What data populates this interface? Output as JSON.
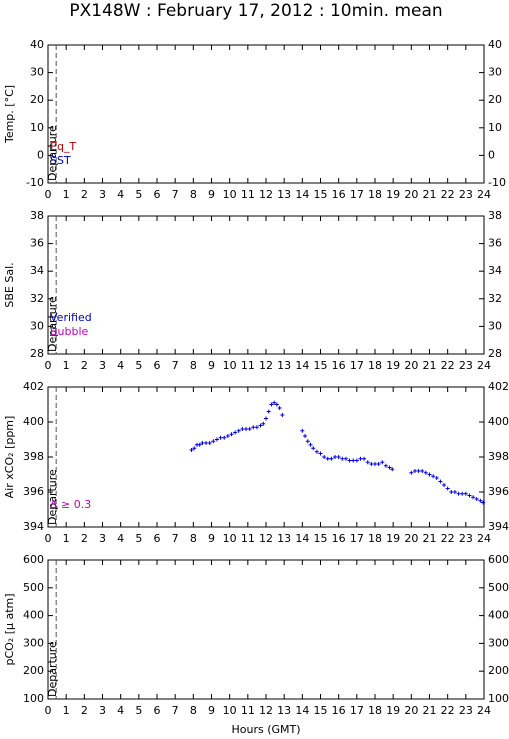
{
  "title": "PX148W : February 17, 2012 : 10min. mean",
  "xlabel": "Hours (GMT)",
  "chart_data": [
    {
      "type": "scatter",
      "ylabel": "Temp. [°C]",
      "xlim": [
        0,
        24
      ],
      "xticks": [
        0,
        1,
        2,
        3,
        4,
        5,
        6,
        7,
        8,
        9,
        10,
        11,
        12,
        13,
        14,
        15,
        16,
        17,
        18,
        19,
        20,
        21,
        22,
        23,
        24
      ],
      "ylim": [
        -10,
        40
      ],
      "yticks": [
        -10,
        0,
        10,
        20,
        30,
        40
      ],
      "departure": {
        "x": 0.45,
        "label": "Departure"
      },
      "annotations": [
        {
          "text": "Eq_T",
          "color": "#c00000"
        },
        {
          "text": "SST",
          "color": "#0000c0"
        }
      ],
      "series": []
    },
    {
      "type": "scatter",
      "ylabel": "SBE Sal.",
      "xlim": [
        0,
        24
      ],
      "xticks": [
        0,
        1,
        2,
        3,
        4,
        5,
        6,
        7,
        8,
        9,
        10,
        11,
        12,
        13,
        14,
        15,
        16,
        17,
        18,
        19,
        20,
        21,
        22,
        23,
        24
      ],
      "ylim": [
        28,
        38
      ],
      "yticks": [
        28,
        30,
        32,
        34,
        36,
        38
      ],
      "departure": {
        "x": 0.45,
        "label": "Departure"
      },
      "annotations": [
        {
          "text": "Verified",
          "color": "#0000c0"
        },
        {
          "text": "Bubble",
          "color": "#c000c0"
        }
      ],
      "series": []
    },
    {
      "type": "scatter",
      "ylabel": "Air xCO₂ [ppm]",
      "xlim": [
        0,
        24
      ],
      "xticks": [
        0,
        1,
        2,
        3,
        4,
        5,
        6,
        7,
        8,
        9,
        10,
        11,
        12,
        13,
        14,
        15,
        16,
        17,
        18,
        19,
        20,
        21,
        22,
        23,
        24
      ],
      "ylim": [
        394,
        402
      ],
      "yticks": [
        394,
        396,
        398,
        400,
        402
      ],
      "departure": {
        "x": 0.45,
        "label": "Departure"
      },
      "annotations": [
        {
          "text": "Δ ≥ 0.3",
          "color": "#c000c0"
        }
      ],
      "series": [
        {
          "color": "#0000e0",
          "x": [
            7.9,
            8.05,
            8.2,
            8.35,
            8.5,
            8.7,
            8.9,
            9.1,
            9.3,
            9.5,
            9.7,
            9.9,
            10.1,
            10.3,
            10.5,
            10.7,
            10.9,
            11.1,
            11.3,
            11.5,
            11.7,
            11.85,
            12.0,
            12.15,
            12.3,
            12.45,
            12.6,
            12.75,
            12.9,
            14.0,
            14.15,
            14.3,
            14.45,
            14.6,
            14.8,
            15.0,
            15.2,
            15.4,
            15.6,
            15.8,
            16.0,
            16.2,
            16.4,
            16.6,
            16.8,
            17.0,
            17.2,
            17.4,
            17.6,
            17.8,
            18.0,
            18.2,
            18.4,
            18.6,
            18.8,
            18.95,
            20.0,
            20.2,
            20.4,
            20.6,
            20.8,
            21.0,
            21.2,
            21.4,
            21.6,
            21.8,
            22.0,
            22.2,
            22.4,
            22.6,
            22.8,
            23.0,
            23.2,
            23.4,
            23.6,
            23.8,
            23.95
          ],
          "values": [
            398.4,
            398.5,
            398.7,
            398.7,
            398.8,
            398.8,
            398.8,
            398.9,
            399.0,
            399.1,
            399.1,
            399.2,
            399.3,
            399.4,
            399.5,
            399.6,
            399.6,
            399.6,
            399.7,
            399.7,
            399.8,
            399.9,
            400.2,
            400.6,
            401.0,
            401.1,
            401.0,
            400.8,
            400.4,
            399.5,
            399.2,
            398.9,
            398.7,
            398.5,
            398.3,
            398.2,
            398.0,
            397.9,
            397.9,
            398.0,
            398.0,
            397.9,
            397.9,
            397.8,
            397.8,
            397.8,
            397.9,
            397.9,
            397.7,
            397.6,
            397.6,
            397.6,
            397.7,
            397.5,
            397.4,
            397.3,
            397.1,
            397.2,
            397.2,
            397.2,
            397.1,
            397.0,
            396.9,
            396.8,
            396.6,
            396.4,
            396.2,
            396.0,
            396.0,
            395.9,
            395.9,
            395.9,
            395.8,
            395.7,
            395.6,
            395.5,
            395.4
          ]
        }
      ]
    },
    {
      "type": "scatter",
      "ylabel": "pCO₂ [μ atm]",
      "xlim": [
        0,
        24
      ],
      "xticks": [
        0,
        1,
        2,
        3,
        4,
        5,
        6,
        7,
        8,
        9,
        10,
        11,
        12,
        13,
        14,
        15,
        16,
        17,
        18,
        19,
        20,
        21,
        22,
        23,
        24
      ],
      "ylim": [
        100,
        600
      ],
      "yticks": [
        100,
        200,
        300,
        400,
        500,
        600
      ],
      "departure": {
        "x": 0.45,
        "label": "Departure"
      },
      "annotations": [],
      "series": []
    }
  ]
}
